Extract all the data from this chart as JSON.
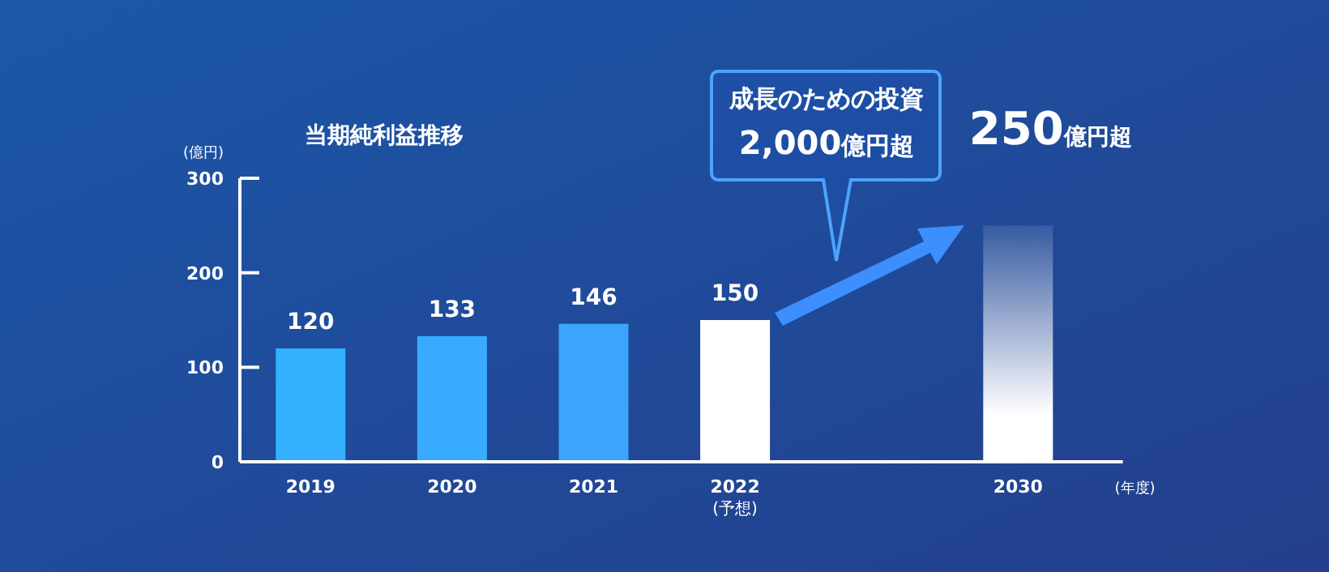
{
  "chart_data": {
    "type": "bar",
    "title": "当期純利益推移",
    "ylabel": "(億円)",
    "xlabel": "(年度)",
    "categories": [
      "2019",
      "2020",
      "2021",
      "2022\n(予想)",
      null,
      "2030"
    ],
    "values": [
      120,
      133,
      146,
      150,
      null,
      250
    ],
    "colors": [
      "#33b1ff",
      "#38abff",
      "#3ca4fc",
      "#ffffff",
      null,
      "#ffffff"
    ],
    "value_labels": [
      "120",
      "133",
      "146",
      "150",
      null,
      "250億円超"
    ],
    "ylim": [
      0,
      300
    ],
    "yticks": [
      0,
      100,
      200,
      300
    ],
    "grid": false,
    "annotations": [
      "成長のための投資",
      "2,000億円超"
    ]
  }
}
